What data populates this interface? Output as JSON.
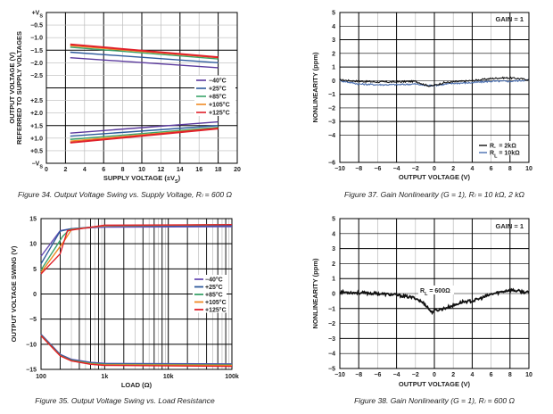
{
  "chart_data": [
    {
      "id": "fig34",
      "type": "line",
      "title": "",
      "caption": "Figure 34. Output Voltage Swing vs. Supply Voltage, Rₗ = 600 Ω",
      "xlabel": "SUPPLY VOLTAGE (±V",
      "xlabel_sub": "S",
      "xlabel_end": ")",
      "ylabel": "OUTPUT VOLTAGE (V)",
      "ylabel2": "REFERRED TO SUPPLY VOLTAGES",
      "xlim": [
        0,
        20
      ],
      "x_ticks": [
        "0",
        "2",
        "4",
        "6",
        "8",
        "10",
        "12",
        "14",
        "16",
        "18",
        "20"
      ],
      "y_tick_labels": [
        "+V",
        "−0.5",
        "−1.0",
        "−1.5",
        "−2.0",
        "−2.5",
        "",
        "+2.5",
        "+2.0",
        "+1.5",
        "+1.0",
        "+0.5",
        "−V"
      ],
      "y_tick_sub": "S",
      "grid": true,
      "legend_position": "right-middle",
      "series": [
        {
          "name": "−40°C",
          "color": "#5b3a9e",
          "upper": [
            [
              2.5,
              -1.8
            ],
            [
              18,
              -2.2
            ]
          ],
          "lower": [
            [
              2.5,
              1.2
            ],
            [
              18,
              1.65
            ]
          ]
        },
        {
          "name": "+25°C",
          "color": "#2e5a9c",
          "upper": [
            [
              2.5,
              -1.58
            ],
            [
              18,
              -2.0
            ]
          ],
          "lower": [
            [
              2.5,
              1.08
            ],
            [
              18,
              1.5
            ]
          ]
        },
        {
          "name": "+85°C",
          "color": "#3aa36a",
          "upper": [
            [
              2.5,
              -1.38
            ],
            [
              18,
              -1.85
            ]
          ],
          "lower": [
            [
              2.5,
              0.95
            ],
            [
              18,
              1.43
            ]
          ]
        },
        {
          "name": "+105°C",
          "color": "#f08a24",
          "upper": [
            [
              2.5,
              -1.32
            ],
            [
              18,
              -1.8
            ]
          ],
          "lower": [
            [
              2.5,
              0.88
            ],
            [
              18,
              1.4
            ]
          ]
        },
        {
          "name": "+125°C",
          "color": "#e0202a",
          "upper": [
            [
              2.5,
              -1.27
            ],
            [
              18,
              -1.78
            ]
          ],
          "lower": [
            [
              2.5,
              0.82
            ],
            [
              18,
              1.38
            ]
          ]
        }
      ]
    },
    {
      "id": "fig37",
      "type": "line",
      "caption": "Figure 37. Gain Nonlinearity (G = 1), Rₗ = 10 kΩ, 2 kΩ",
      "xlabel": "OUTPUT VOLTAGE (V)",
      "ylabel": "NONLINEARITY (ppm)",
      "xlim": [
        -10,
        10
      ],
      "ylim": [
        -6,
        5
      ],
      "x_ticks": [
        "−10",
        "−8",
        "−6",
        "−4",
        "−2",
        "0",
        "2",
        "4",
        "6",
        "8",
        "10"
      ],
      "y_ticks": [
        "5",
        "4",
        "3",
        "2",
        "1",
        "0",
        "−1",
        "−2",
        "−3",
        "−4",
        "−6"
      ],
      "annotation": "GAIN = 1",
      "grid": true,
      "legend_position": "bottom-right",
      "series": [
        {
          "name": "R",
          "name_sub": "L",
          "name_rest": " = 2kΩ",
          "color": "#111111",
          "x": [
            -10,
            -8,
            -6,
            -4,
            -2,
            -1,
            -0.5,
            0,
            1,
            2,
            4,
            6,
            7,
            8,
            9,
            10
          ],
          "y": [
            0.05,
            -0.05,
            -0.1,
            -0.1,
            -0.05,
            -0.3,
            -0.4,
            -0.35,
            -0.15,
            -0.1,
            0.0,
            0.15,
            0.2,
            0.2,
            0.15,
            0.05
          ]
        },
        {
          "name": "R",
          "name_sub": "L",
          "name_rest": " = 10kΩ",
          "color": "#4a6fb0",
          "x": [
            -10,
            -8,
            -6,
            -4,
            -2,
            -1,
            0,
            2,
            4,
            6,
            8,
            10
          ],
          "y": [
            0.0,
            -0.25,
            -0.3,
            -0.3,
            -0.25,
            -0.35,
            -0.35,
            -0.2,
            -0.15,
            -0.05,
            -0.05,
            0.05
          ]
        }
      ]
    },
    {
      "id": "fig35",
      "type": "line",
      "caption": "Figure 35. Output Voltage Swing vs. Load Resistance",
      "xlabel": "LOAD (Ω)",
      "ylabel": "OUTPUT VOLTAGE SWING (V)",
      "xscale": "log",
      "xlim": [
        100,
        100000
      ],
      "ylim": [
        -15,
        15
      ],
      "x_ticks": [
        {
          "v": 100,
          "label": "100"
        },
        {
          "v": 1000,
          "label": "1k"
        },
        {
          "v": 10000,
          "label": "10k"
        },
        {
          "v": 100000,
          "label": "100k"
        }
      ],
      "y_ticks": [
        "15",
        "10",
        "5",
        "0",
        "−5",
        "−10",
        "−15"
      ],
      "grid": true,
      "legend_position": "right-middle",
      "series": [
        {
          "name": "−40°C",
          "color": "#6a4fb5",
          "upper": [
            [
              100,
              7.5
            ],
            [
              200,
              12.6
            ],
            [
              300,
              13.0
            ],
            [
              1000,
              13.3
            ],
            [
              100000,
              13.4
            ]
          ],
          "lower": [
            [
              100,
              -8.0
            ],
            [
              200,
              -12.0
            ],
            [
              300,
              -13.0
            ],
            [
              600,
              -13.6
            ],
            [
              1000,
              -13.8
            ],
            [
              100000,
              -13.9
            ]
          ]
        },
        {
          "name": "+25°C",
          "color": "#2e5a9c",
          "upper": [
            [
              100,
              6.0
            ],
            [
              200,
              12.5
            ],
            [
              300,
              13.0
            ],
            [
              1000,
              13.5
            ],
            [
              100000,
              13.6
            ]
          ],
          "lower": [
            [
              100,
              -8.1
            ],
            [
              200,
              -12.1
            ],
            [
              300,
              -13.1
            ],
            [
              600,
              -13.7
            ],
            [
              1000,
              -13.9
            ],
            [
              100000,
              -14.0
            ]
          ]
        },
        {
          "name": "+85°C",
          "color": "#3aa36a",
          "upper": [
            [
              100,
              4.8
            ],
            [
              220,
              11.5
            ],
            [
              280,
              12.8
            ],
            [
              1000,
              13.6
            ],
            [
              100000,
              13.8
            ]
          ],
          "lower": [
            [
              100,
              -8.2
            ],
            [
              200,
              -12.2
            ],
            [
              300,
              -13.2
            ],
            [
              600,
              -13.8
            ],
            [
              1000,
              -14.0
            ],
            [
              100000,
              -14.1
            ]
          ]
        },
        {
          "name": "+105°C",
          "color": "#f08a24",
          "upper": [
            [
              100,
              4.3
            ],
            [
              230,
              10.5
            ],
            [
              300,
              12.8
            ],
            [
              1000,
              13.6
            ],
            [
              100000,
              13.8
            ]
          ],
          "lower": [
            [
              100,
              -8.3
            ],
            [
              200,
              -12.3
            ],
            [
              300,
              -13.3
            ],
            [
              600,
              -13.9
            ],
            [
              1000,
              -14.1
            ],
            [
              100000,
              -14.2
            ]
          ]
        },
        {
          "name": "+125°C",
          "color": "#e0202a",
          "upper": [
            [
              100,
              4.0
            ],
            [
              200,
              8.0
            ],
            [
              260,
              12.6
            ],
            [
              1000,
              13.7
            ],
            [
              100000,
              13.8
            ]
          ],
          "lower": [
            [
              100,
              -8.3
            ],
            [
              200,
              -12.3
            ],
            [
              300,
              -13.3
            ],
            [
              600,
              -14.0
            ],
            [
              1000,
              -14.2
            ],
            [
              100000,
              -14.4
            ]
          ]
        }
      ]
    },
    {
      "id": "fig38",
      "type": "line",
      "caption": "Figure 38. Gain Nonlinearity (G = 1), Rₗ = 600 Ω",
      "xlabel": "OUTPUT VOLTAGE (V)",
      "ylabel": "NONLINEARITY (ppm)",
      "xlim": [
        -10,
        10
      ],
      "ylim": [
        -5,
        5
      ],
      "x_ticks": [
        "−10",
        "−8",
        "−6",
        "−4",
        "−2",
        "0",
        "2",
        "4",
        "6",
        "8",
        "10"
      ],
      "y_ticks": [
        "5",
        "4",
        "3",
        "2",
        "1",
        "0",
        "−1",
        "−2",
        "−3",
        "−4",
        "−5"
      ],
      "annotation": "GAIN = 1",
      "curve_label": "R",
      "curve_label_sub": "L",
      "curve_label_rest": " = 600Ω",
      "grid": true,
      "series": [
        {
          "name": "RL = 600Ω",
          "color": "#111111",
          "x": [
            -10,
            -8,
            -6,
            -4,
            -2,
            -1,
            -0.3,
            0,
            1,
            2,
            3,
            4,
            5,
            6,
            7,
            8,
            9,
            10
          ],
          "y": [
            0.1,
            0.05,
            0.0,
            -0.1,
            -0.3,
            -0.7,
            -1.25,
            -1.15,
            -1.0,
            -0.8,
            -0.55,
            -0.5,
            -0.3,
            -0.05,
            0.1,
            0.25,
            0.15,
            0.05
          ]
        }
      ]
    }
  ]
}
